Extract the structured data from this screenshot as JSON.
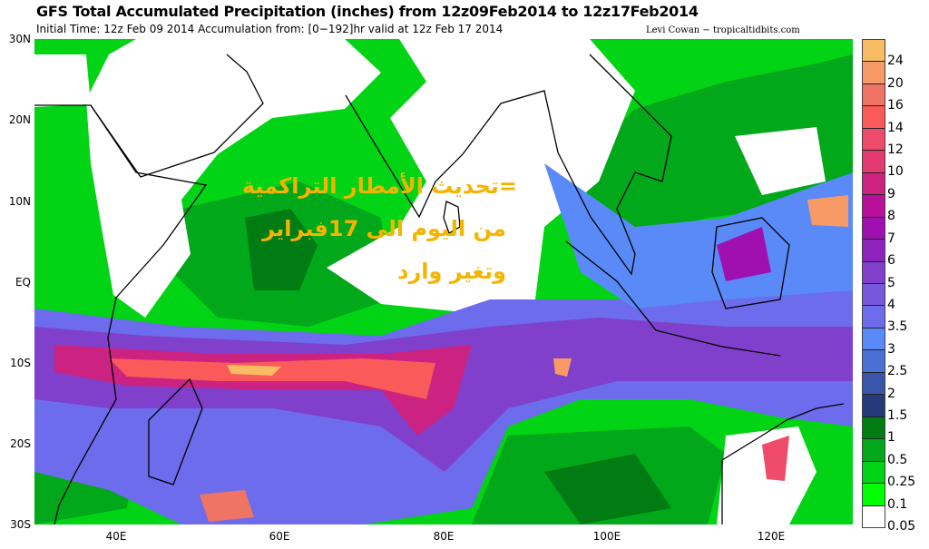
{
  "header": {
    "title": "GFS Total Accumulated Precipitation (inches) from 12z09Feb2014 to 12z17Feb2014",
    "subtitle": "Initial Time: 12z Feb 09 2014 Accumulation from: [0−192]hr valid at 12z Feb 17 2014",
    "credit": "Levi Cowan − tropicaltidbits.com"
  },
  "map": {
    "lat_labels": [
      "30N",
      "20N",
      "10N",
      "EQ",
      "10S",
      "20S",
      "30S"
    ],
    "lon_labels": [
      "40E",
      "60E",
      "80E",
      "100E",
      "120E"
    ]
  },
  "colorbar": {
    "labels": [
      "24",
      "20",
      "16",
      "14",
      "12",
      "10",
      "9",
      "8",
      "7",
      "6",
      "5",
      "4",
      "3.5",
      "3",
      "2.5",
      "2",
      "1.5",
      "1",
      "0.5",
      "0.25",
      "0.1",
      "0.05"
    ],
    "colors": [
      "#f8bc62",
      "#f89a66",
      "#f07464",
      "#fa5a5a",
      "#ee4c6a",
      "#e23a70",
      "#cc2282",
      "#b8109a",
      "#a010b0",
      "#8e22bc",
      "#8040cc",
      "#7658dc",
      "#6c6cec",
      "#5a8af8",
      "#4a70d6",
      "#3a56aa",
      "#243a7a",
      "#007c12",
      "#00a81a",
      "#00d414",
      "#00ff00",
      "#ffffff"
    ]
  },
  "overlay": {
    "lines": [
      "=تحديث الأمطار التراكمية",
      "من اليوم الى 17فبراير",
      "وتغير وارد"
    ],
    "color": "#f5b400"
  }
}
